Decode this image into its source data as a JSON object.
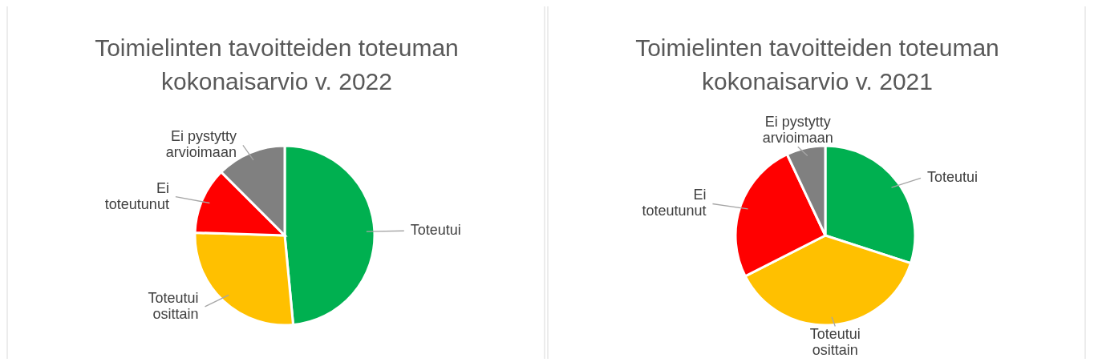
{
  "chart_data": [
    {
      "type": "pie",
      "title": "Toimielinten tavoitteiden toteuman kokonaisarvio v. 2022",
      "categories": [
        "Toteutui",
        "Toteutui osittain",
        "Ei toteutunut",
        "Ei pystytty arvioimaan"
      ],
      "values": [
        48.5,
        27,
        12,
        12.5
      ],
      "colors": [
        "#00b050",
        "#ffc000",
        "#ff0000",
        "#808080"
      ]
    },
    {
      "type": "pie",
      "title": "Toimielinten tavoitteiden toteuman kokonaisarvio v. 2021",
      "categories": [
        "Toteutui",
        "Toteutui osittain",
        "Ei toteutunut",
        "Ei pystytty arvioimaan"
      ],
      "values": [
        30,
        37.5,
        25.5,
        7
      ],
      "colors": [
        "#00b050",
        "#ffc000",
        "#ff0000",
        "#808080"
      ]
    }
  ]
}
